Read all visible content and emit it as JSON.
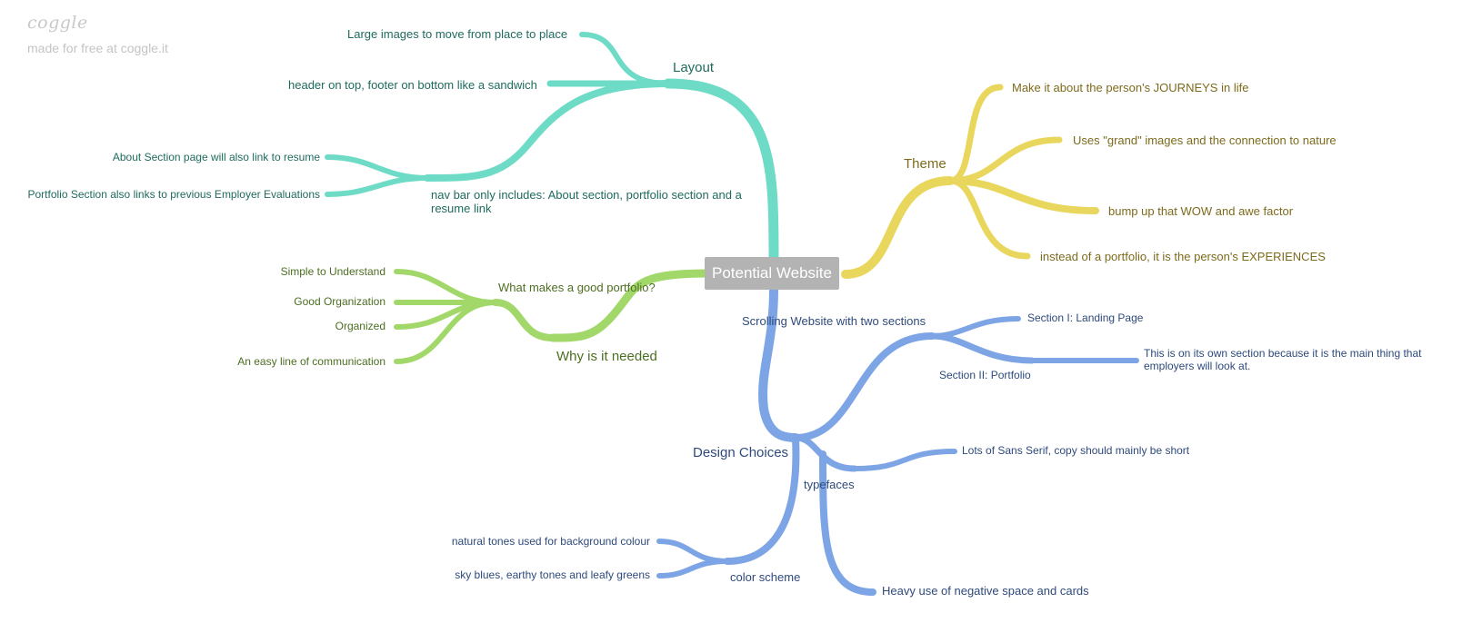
{
  "brand": {
    "logo": "coggle",
    "tagline": "made for free at coggle.it"
  },
  "colors": {
    "layout_branch": "#6ddbc6",
    "theme_branch": "#e9d65c",
    "good_portfolio_branch": "#a2d86a",
    "design_branch": "#7da5e6",
    "central_node": "#b3b3b3"
  },
  "central": "Potential Website",
  "layout": {
    "label": "Layout",
    "large_images": "Large images to move from place to place",
    "header_footer": "header on top, footer on bottom like a sandwich",
    "nav_bar": "nav bar only includes: About section, portfolio section and a resume link",
    "about_section": "About Section page will also link to resume",
    "portfolio_section": "Portfolio Section also links to previous Employer Evaluations"
  },
  "theme": {
    "label": "Theme",
    "journeys": "Make it about the person's JOURNEYS in life",
    "grand_images": "Uses \"grand\" images and the connection to nature",
    "wow": "bump up that WOW and awe factor",
    "experiences": "instead of a portfolio, it is the person's EXPERIENCES"
  },
  "good_portfolio": {
    "label": "What makes a good portfolio?",
    "why_needed": "Why is it needed",
    "simple": "Simple to Understand",
    "good_org": "Good Organization",
    "organized": "Organized",
    "communication": "An easy line of communication"
  },
  "design": {
    "label": "Design Choices",
    "scrolling": "Scrolling Website with two sections",
    "section1": "Section I: Landing Page",
    "section2": "Section II: Portfolio",
    "own_section": "This is on its own section because it is the main thing that employers will look at.",
    "typefaces": "typefaces",
    "sans_serif": "Lots of Sans Serif, copy should mainly be short",
    "color_scheme": "color scheme",
    "natural_tones": "natural tones used for background colour",
    "sky_blues": "sky blues, earthy tones and leafy greens",
    "negative_space": "Heavy use of negative space and cards"
  }
}
